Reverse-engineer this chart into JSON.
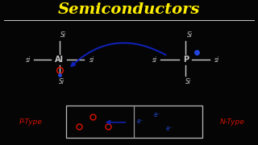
{
  "bg_color": "#050505",
  "title": "Semiconductors",
  "title_color": "#ffee00",
  "title_fontsize": 14,
  "si_color": "#cccccc",
  "hole_color": "#cc1100",
  "electron_color": "#2244cc",
  "blue_dot_color": "#2244dd",
  "arrow_color": "#1122bb",
  "ptype_label": "P-Type",
  "ntype_label": "N-Type",
  "label_color": "#cc1100",
  "label_fontsize": 6.5,
  "box_edge_color": "#bbbbbb",
  "divider_color": "#999999"
}
